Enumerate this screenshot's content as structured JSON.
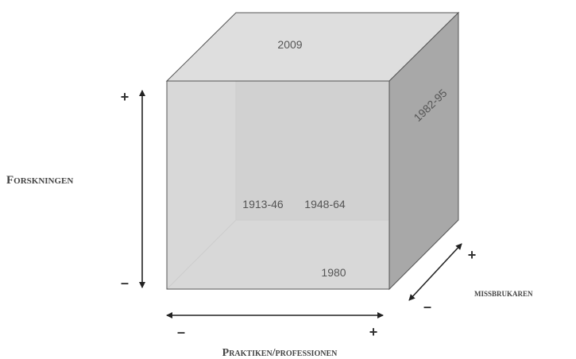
{
  "axes": {
    "research": {
      "label": "Forskningen",
      "plus": "+",
      "minus": "–"
    },
    "practice": {
      "label": "Praktiken/professionen",
      "plus": "+",
      "minus": "–"
    },
    "abusers": {
      "label": "missbrukaren",
      "plus": "+",
      "minus": "–"
    }
  },
  "periods": {
    "top": "2009",
    "right_face": "1982-95",
    "back_left": "1913-46",
    "back_middle": "1948-64",
    "bottom": "1980"
  },
  "colors": {
    "front_face": "#d0d0d0",
    "top_face": "#dedede",
    "side_face": "#a8a8a8",
    "edges": "#555555",
    "hidden_edges": "#c4c4c4",
    "arrows": "#222222"
  }
}
